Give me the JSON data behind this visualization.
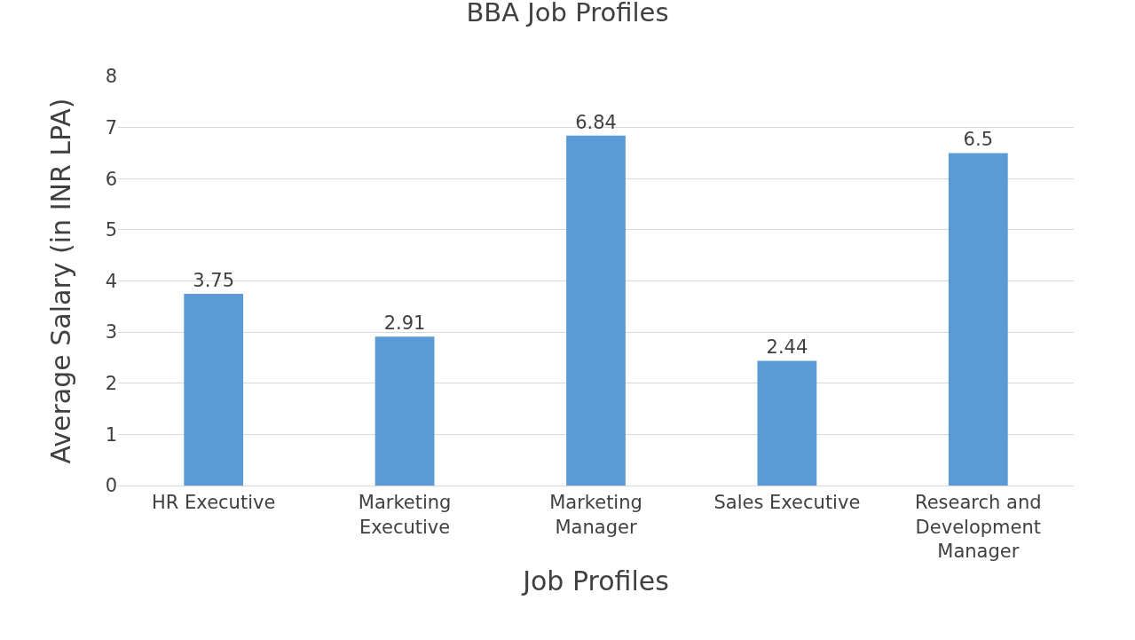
{
  "chart_data": {
    "type": "bar",
    "title": "BBA Job Profiles",
    "xlabel": "Job Profiles",
    "ylabel": "Average Salary (in INR LPA)",
    "categories": [
      "HR Executive",
      "Marketing Executive",
      "Marketing Manager",
      "Sales Executive",
      "Research and Development Manager"
    ],
    "values": [
      3.75,
      2.91,
      6.84,
      2.44,
      6.5
    ],
    "color": "#5b9bd5",
    "data_labels": true,
    "ylim": [
      0,
      8
    ],
    "yticks": [
      0,
      1,
      2,
      3,
      4,
      5,
      6,
      7,
      8
    ],
    "grid": "y",
    "legend": false
  }
}
